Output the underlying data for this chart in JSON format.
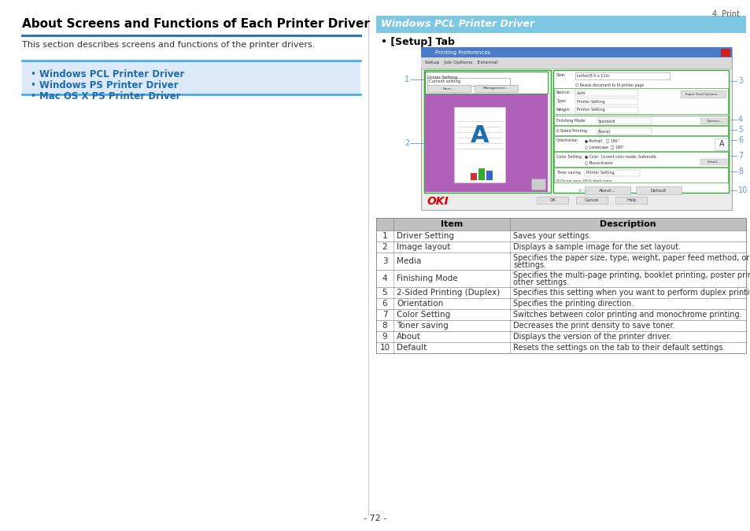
{
  "page_bg": "#ffffff",
  "page_number": "- 72 -",
  "top_right_text": "4. Print",
  "left_panel": {
    "title": "About Screens and Functions of Each Printer Driver",
    "title_color": "#000000",
    "underline_color": "#2E75B6",
    "intro_text": "This section describes screens and functions of the printer drivers.",
    "box_bg": "#dce9f8",
    "box_line_color": "#4BAEE8",
    "bullet_color": "#1F6BB0",
    "bullets": [
      "Windows PCL Printer Driver",
      "Windows PS Printer Driver",
      "Mac OS X PS Printer Driver"
    ]
  },
  "right_panel": {
    "section_bg": "#7ec8e3",
    "section_title": "Windows PCL Printer Driver",
    "section_title_color": "#ffffff",
    "subsection": "• [Setup] Tab",
    "table_header_bg": "#bfbfbf",
    "table_rows": [
      [
        "1",
        "Driver Setting",
        "Saves your settings."
      ],
      [
        "2",
        "Image layout",
        "Displays a sample image for the set layout."
      ],
      [
        "3",
        "Media",
        "Specifies the paper size, type, weight, paper feed method, or other\nsettings."
      ],
      [
        "4",
        "Finishing Mode",
        "Specifies the multi-page printing, booklet printing, poster printing, or\nother settings."
      ],
      [
        "5",
        "2-Sided Printing (Duplex)",
        "Specifies this setting when you want to perform duplex printing."
      ],
      [
        "6",
        "Orientation",
        "Specifies the printing direction."
      ],
      [
        "7",
        "Color Setting",
        "Switches between color printing and monochrome printing."
      ],
      [
        "8",
        "Toner saving",
        "Decreases the print density to save toner."
      ],
      [
        "9",
        "About",
        "Displays the version of the printer driver."
      ],
      [
        "10",
        "Default",
        "Resets the settings on the tab to their default settings."
      ]
    ]
  }
}
